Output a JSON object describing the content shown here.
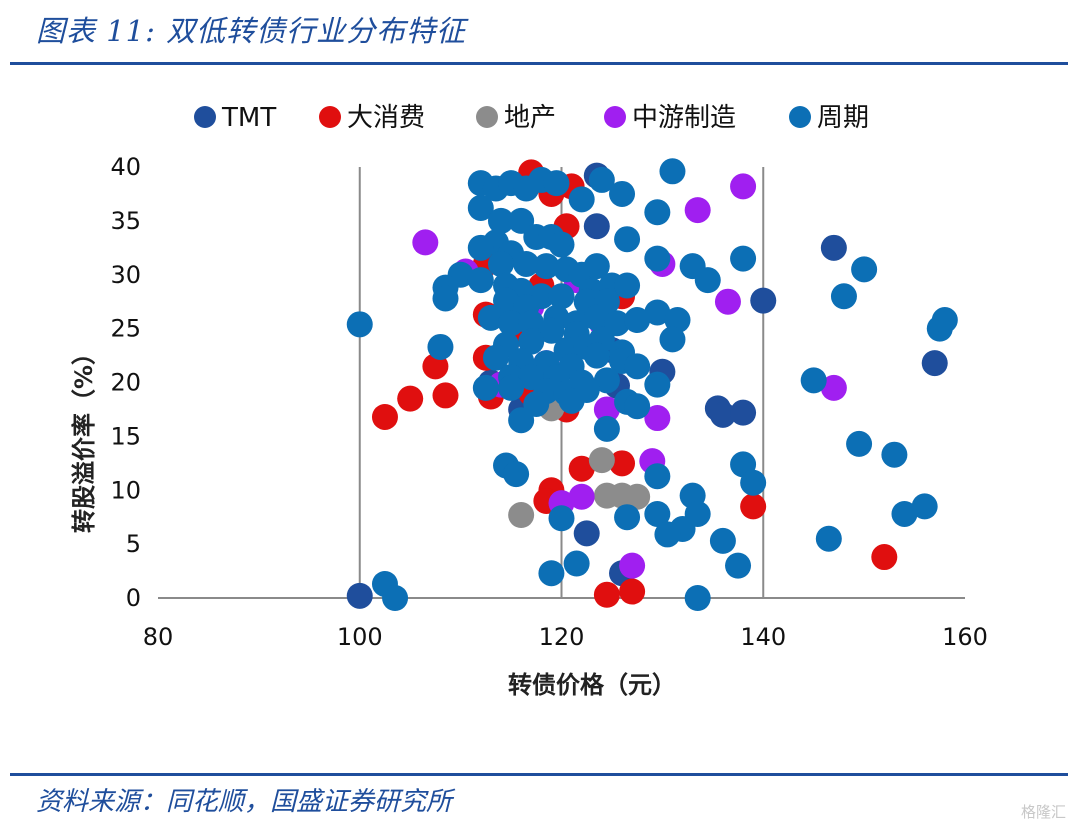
{
  "title": "图表 11:  双低转债行业分布特征",
  "source": "资料来源：同花顺，国盛证券研究所",
  "watermark": "格隆汇",
  "chart_data": {
    "type": "scatter",
    "title": "",
    "xlabel": "转债价格（元）",
    "ylabel": "转股溢价率（%）",
    "xlim": [
      80,
      160
    ],
    "ylim": [
      0,
      40
    ],
    "xticks": [
      80,
      100,
      120,
      140,
      160
    ],
    "yticks": [
      0,
      5,
      10,
      15,
      20,
      25,
      30,
      35,
      40
    ],
    "vertical_reference_lines": [
      100,
      120,
      140
    ],
    "legend_position": "top",
    "series": [
      {
        "name": "TMT",
        "color": "#1f4e9c",
        "points": [
          [
            100,
            0.2
          ],
          [
            123.5,
            39.2
          ],
          [
            123.5,
            34.5
          ],
          [
            147,
            32.5
          ],
          [
            140,
            27.6
          ],
          [
            157,
            21.8
          ],
          [
            135.5,
            17.6
          ],
          [
            136,
            17
          ],
          [
            138,
            17.2
          ],
          [
            130,
            21
          ],
          [
            125.5,
            19.7
          ],
          [
            122.5,
            6
          ],
          [
            126,
            2.3
          ],
          [
            113,
            20
          ],
          [
            125,
            23
          ],
          [
            116,
            17.5
          ]
        ]
      },
      {
        "name": "大消费",
        "color": "#e00f0f",
        "points": [
          [
            117,
            39.5
          ],
          [
            121,
            38.2
          ],
          [
            119,
            37.5
          ],
          [
            120.5,
            34.5
          ],
          [
            112.5,
            31
          ],
          [
            118,
            29
          ],
          [
            126,
            28
          ],
          [
            112.5,
            26.3
          ],
          [
            115.5,
            24.5
          ],
          [
            112.5,
            22.3
          ],
          [
            107.5,
            21.5
          ],
          [
            105,
            18.5
          ],
          [
            102.5,
            16.8
          ],
          [
            108.5,
            18.8
          ],
          [
            113,
            18.7
          ],
          [
            117,
            19
          ],
          [
            120.5,
            17.5
          ],
          [
            126,
            12.5
          ],
          [
            122,
            12
          ],
          [
            139,
            8.5
          ],
          [
            152,
            3.8
          ],
          [
            119,
            10
          ],
          [
            118.5,
            9
          ],
          [
            124.5,
            0.3
          ],
          [
            127,
            0.6
          ],
          [
            118,
            21
          ]
        ]
      },
      {
        "name": "地产",
        "color": "#8c8c8c",
        "points": [
          [
            124,
            12.8
          ],
          [
            124.5,
            9.5
          ],
          [
            126,
            9.5
          ],
          [
            127.5,
            9.4
          ],
          [
            116,
            7.7
          ],
          [
            119,
            17.6
          ]
        ]
      },
      {
        "name": "中游制造",
        "color": "#a01ff0",
        "points": [
          [
            106.5,
            33
          ],
          [
            138,
            38.2
          ],
          [
            133.5,
            36
          ],
          [
            136.5,
            27.5
          ],
          [
            110.5,
            30.3
          ],
          [
            117,
            27
          ],
          [
            121.5,
            29.5
          ],
          [
            130,
            31
          ],
          [
            129,
            12.7
          ],
          [
            129.5,
            16.7
          ],
          [
            124.5,
            17.5
          ],
          [
            147,
            19.5
          ],
          [
            114,
            19.8
          ],
          [
            122,
            9.4
          ],
          [
            120,
            8.8
          ],
          [
            127,
            3
          ],
          [
            118.5,
            21.8
          ],
          [
            124,
            25.5
          ]
        ]
      },
      {
        "name": "周期",
        "color": "#0c6fb5",
        "points": [
          [
            112,
            38.5
          ],
          [
            113.5,
            38
          ],
          [
            115,
            38.5
          ],
          [
            116.5,
            38
          ],
          [
            118,
            38.8
          ],
          [
            119.5,
            38.5
          ],
          [
            122,
            37
          ],
          [
            124,
            38.8
          ],
          [
            126,
            37.5
          ],
          [
            131,
            39.6
          ],
          [
            112,
            36.2
          ],
          [
            114,
            35
          ],
          [
            116,
            35
          ],
          [
            117.5,
            33.5
          ],
          [
            119,
            33.5
          ],
          [
            113.5,
            33
          ],
          [
            115,
            32
          ],
          [
            120,
            32.8
          ],
          [
            126.5,
            33.3
          ],
          [
            129.5,
            35.8
          ],
          [
            112,
            32.5
          ],
          [
            114,
            31
          ],
          [
            116.5,
            31
          ],
          [
            118.5,
            30.8
          ],
          [
            120.5,
            30.5
          ],
          [
            122,
            30
          ],
          [
            123.5,
            30.8
          ],
          [
            129.5,
            31.5
          ],
          [
            133,
            30.8
          ],
          [
            134.5,
            29.5
          ],
          [
            138,
            31.5
          ],
          [
            148,
            28
          ],
          [
            150,
            30.5
          ],
          [
            110,
            30
          ],
          [
            112,
            29.5
          ],
          [
            114.5,
            29
          ],
          [
            116,
            28.5
          ],
          [
            118,
            28
          ],
          [
            120,
            28
          ],
          [
            123,
            28.5
          ],
          [
            125,
            29
          ],
          [
            126.5,
            29
          ],
          [
            108.5,
            28.8
          ],
          [
            108.5,
            27.8
          ],
          [
            114.5,
            27.6
          ],
          [
            116.5,
            27
          ],
          [
            122.5,
            27.5
          ],
          [
            124.5,
            27.5
          ],
          [
            113,
            26
          ],
          [
            115,
            25.5
          ],
          [
            117,
            25.5
          ],
          [
            119.5,
            26
          ],
          [
            121.5,
            25.5
          ],
          [
            123.5,
            26
          ],
          [
            125.5,
            25.5
          ],
          [
            127.5,
            25.8
          ],
          [
            129.5,
            26.5
          ],
          [
            131.5,
            25.8
          ],
          [
            100,
            25.4
          ],
          [
            119,
            24.8
          ],
          [
            121.5,
            24.5
          ],
          [
            124,
            24
          ],
          [
            114.5,
            23.5
          ],
          [
            117,
            23.8
          ],
          [
            120.5,
            23
          ],
          [
            122.5,
            23.3
          ],
          [
            126,
            22.8
          ],
          [
            108,
            23.3
          ],
          [
            131,
            24
          ],
          [
            157.5,
            25
          ],
          [
            158,
            25.8
          ],
          [
            113.5,
            22.3
          ],
          [
            116,
            22
          ],
          [
            118.5,
            21.8
          ],
          [
            121,
            21.5
          ],
          [
            123.5,
            22.5
          ],
          [
            126,
            22
          ],
          [
            127.5,
            21.5
          ],
          [
            145,
            20.2
          ],
          [
            115,
            20.5
          ],
          [
            117,
            20.5
          ],
          [
            119.5,
            20.5
          ],
          [
            122,
            20
          ],
          [
            124.5,
            20.2
          ],
          [
            112.5,
            19.5
          ],
          [
            115,
            19.5
          ],
          [
            118.5,
            19.2
          ],
          [
            120.5,
            19
          ],
          [
            122.5,
            19.3
          ],
          [
            129.5,
            19.8
          ],
          [
            117.5,
            18
          ],
          [
            121,
            18.3
          ],
          [
            126.5,
            18.2
          ],
          [
            127.5,
            17.8
          ],
          [
            116,
            16.5
          ],
          [
            124.5,
            15.7
          ],
          [
            149.5,
            14.3
          ],
          [
            153,
            13.3
          ],
          [
            114.5,
            12.3
          ],
          [
            115.5,
            11.5
          ],
          [
            129.5,
            11.3
          ],
          [
            138,
            12.4
          ],
          [
            139,
            10.7
          ],
          [
            133,
            9.5
          ],
          [
            129.5,
            7.8
          ],
          [
            133.5,
            7.8
          ],
          [
            132,
            6.4
          ],
          [
            130.5,
            5.9
          ],
          [
            126.5,
            7.5
          ],
          [
            120,
            7.4
          ],
          [
            154,
            7.8
          ],
          [
            156,
            8.5
          ],
          [
            146.5,
            5.5
          ],
          [
            136,
            5.3
          ],
          [
            137.5,
            3
          ],
          [
            121.5,
            3.2
          ],
          [
            119,
            2.3
          ],
          [
            102.5,
            1.3
          ],
          [
            103.5,
            0
          ],
          [
            133.5,
            0
          ]
        ]
      }
    ]
  }
}
